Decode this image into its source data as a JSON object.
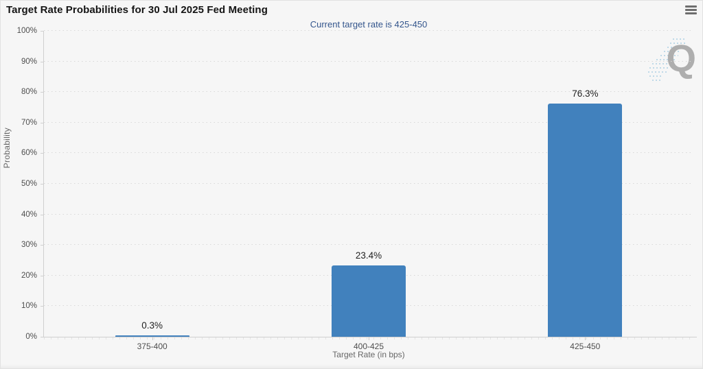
{
  "header": {
    "title": "Target Rate Probabilities for 30 Jul 2025 Fed Meeting",
    "menu_icon": "hamburger-icon"
  },
  "chart_data": {
    "type": "bar",
    "title": "Target Rate Probabilities for 30 Jul 2025 Fed Meeting",
    "subtitle": "Current target rate is 425-450",
    "categories": [
      "375-400",
      "400-425",
      "425-450"
    ],
    "values": [
      0.3,
      23.4,
      76.3
    ],
    "value_labels": [
      "0.3%",
      "23.4%",
      "76.3%"
    ],
    "xlabel": "Target Rate (in bps)",
    "ylabel": "Probability",
    "ylim": [
      0,
      100
    ],
    "ytick_step": 10,
    "ytick_labels": [
      "0%",
      "10%",
      "20%",
      "30%",
      "40%",
      "50%",
      "60%",
      "70%",
      "80%",
      "90%",
      "100%"
    ],
    "grid": "dotted-horizontal",
    "legend": "none",
    "bar_color": "#4181BD"
  },
  "watermark": {
    "label": "Q"
  },
  "colors": {
    "background": "#f6f6f6",
    "bar": "#4181BD",
    "subtitle": "#33558C",
    "axis_line": "#cfcfcf",
    "gridline": "#d8d8d8",
    "watermark_q": "#ababab",
    "watermark_dashes": "#bcd8e8"
  }
}
